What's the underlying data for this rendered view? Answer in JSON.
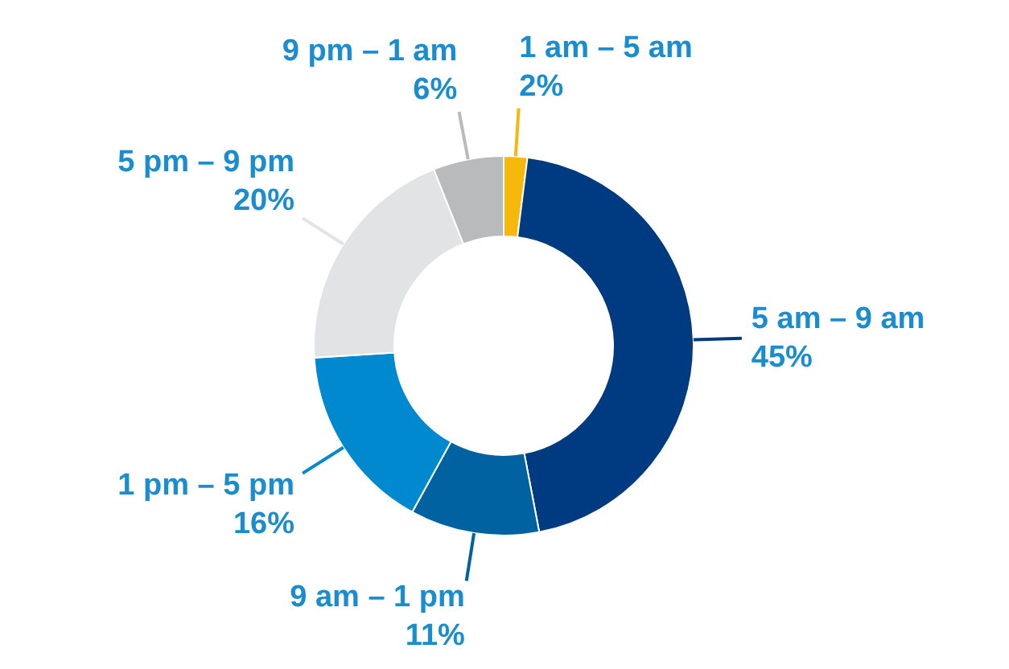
{
  "chart_data": {
    "type": "donut",
    "categories": [
      "1 am – 5 am",
      "5 am – 9 am",
      "9 am – 1 pm",
      "1 pm – 5 pm",
      "5 pm – 9 pm",
      "9 pm – 1 am"
    ],
    "values": [
      2,
      45,
      11,
      16,
      20,
      6
    ],
    "value_labels": [
      "2%",
      "45%",
      "11%",
      "16%",
      "20%",
      "6%"
    ],
    "colors": [
      "#f5b80b",
      "#003a80",
      "#0062a0",
      "#0089cf",
      "#e1e3e4",
      "#b8babc"
    ]
  }
}
